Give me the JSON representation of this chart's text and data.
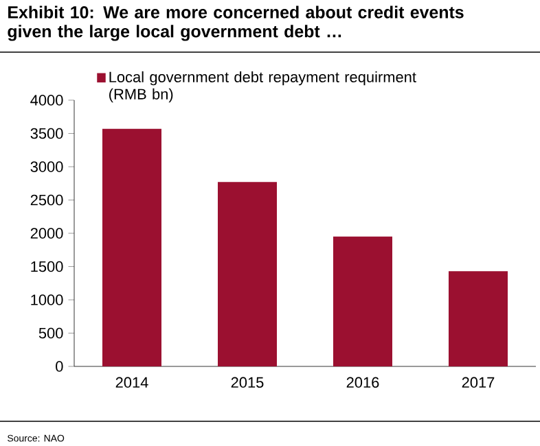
{
  "chart_data": {
    "type": "bar",
    "title": "Exhibit 10: We are more concerned about credit events given the large local government debt …",
    "categories": [
      "2014",
      "2015",
      "2016",
      "2017"
    ],
    "series": [
      {
        "name": "Local government debt repayment requirment (RMB bn)",
        "color": "#9b1030",
        "values": [
          3570,
          2770,
          1950,
          1430
        ]
      }
    ],
    "ylim": [
      0,
      4000
    ],
    "yticks": [
      0,
      500,
      1000,
      1500,
      2000,
      2500,
      3000,
      3500,
      4000
    ],
    "legend": "top left",
    "grid": false,
    "annotations": [
      "Source: NAO"
    ]
  }
}
